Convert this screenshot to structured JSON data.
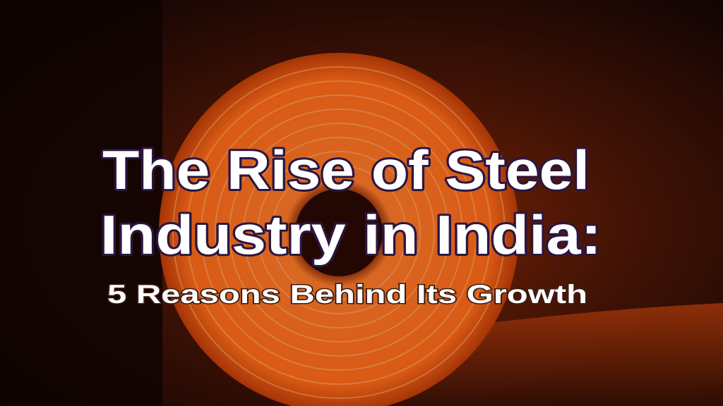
{
  "title": {
    "lines": [
      "The Rise of Steel",
      "Industry in India:"
    ]
  },
  "subtitle": "5 Reasons Behind Its Growth"
}
